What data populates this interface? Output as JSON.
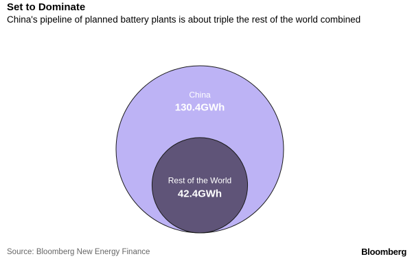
{
  "title": "Set to Dominate",
  "subtitle": "China's pipeline of planned battery plants is about triple the rest of the world combined",
  "source": "Source: Bloomberg New Energy Finance",
  "logo": "Bloomberg",
  "colors": {
    "china": "#bdb3f5",
    "rest": "#5f5478",
    "stroke": "#1a1a1a",
    "china_text": "#ffffff",
    "rest_text": "#ffffff"
  },
  "chart_data": {
    "type": "bubble",
    "unit": "GWh",
    "series": [
      {
        "name": "China",
        "value": 130.4,
        "value_label": "130.4GWh"
      },
      {
        "name": "Rest of the World",
        "value": 42.4,
        "value_label": "42.4GWh"
      }
    ]
  }
}
